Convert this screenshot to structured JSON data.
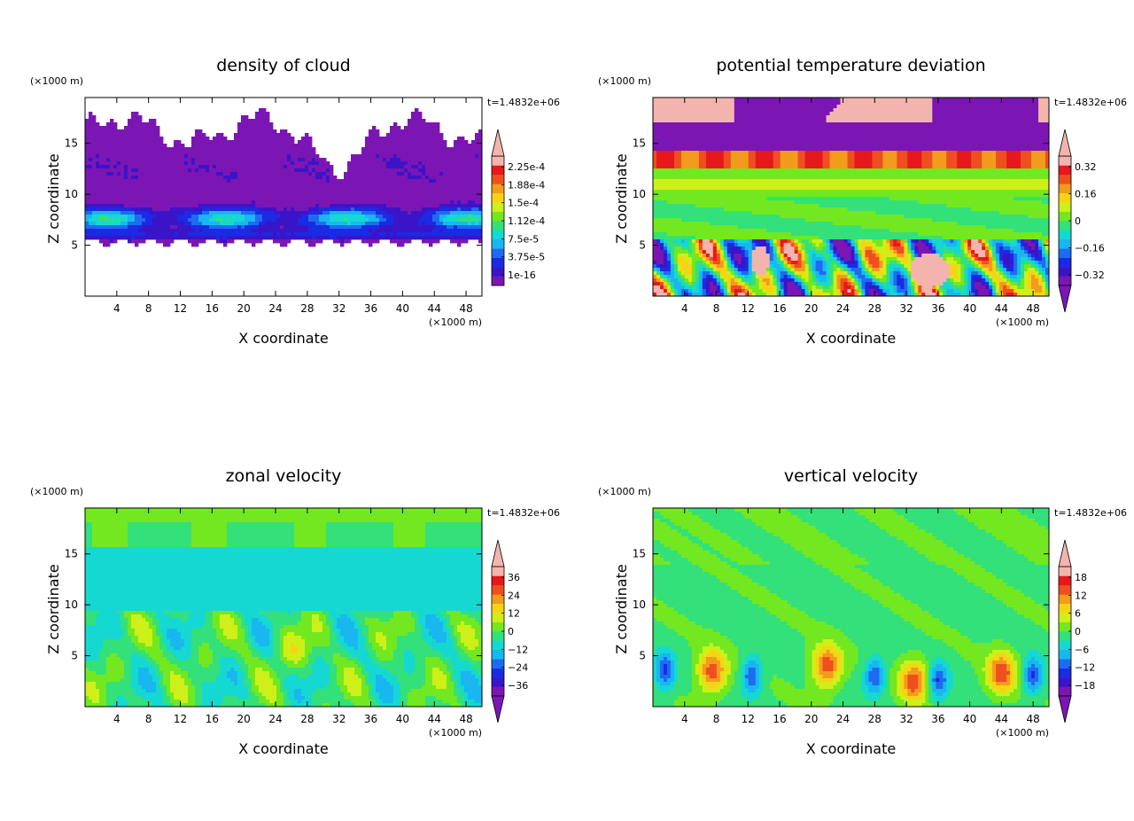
{
  "colors": [
    "#7b16b5",
    "#3b14c8",
    "#1a2be3",
    "#1f6bf0",
    "#19b7f0",
    "#15d8d2",
    "#33e07a",
    "#73e820",
    "#cfef18",
    "#f6d414",
    "#f29b1c",
    "#ef4f1e",
    "#e6181c",
    "#f4b4ae"
  ],
  "chart_data": [
    {
      "type": "heatmap",
      "title": "density of cloud",
      "xlabel": "X coordinate",
      "ylabel": "Z coordinate",
      "x_unit": "(×1000 m)",
      "y_unit": "(×1000 m)",
      "time_label": "t=1.4832e+06",
      "xlim": [
        0,
        50
      ],
      "ylim": [
        0,
        19.5
      ],
      "xticks": [
        "4",
        "8",
        "12",
        "16",
        "20",
        "24",
        "28",
        "32",
        "36",
        "40",
        "44",
        "48"
      ],
      "yticks": [
        "5",
        "10",
        "15"
      ],
      "xtick_values": [
        4,
        8,
        12,
        16,
        20,
        24,
        28,
        32,
        36,
        40,
        44,
        48
      ],
      "ytick_values": [
        5,
        10,
        15
      ],
      "colorbar_labels": [
        "1e-16",
        "3.75e-5",
        "7.5e-5",
        "1.12e-4",
        "1.5e-4",
        "1.88e-4",
        "2.25e-4"
      ],
      "colorbar_triangle_bottom": false,
      "field": "cloud"
    },
    {
      "type": "heatmap",
      "title": "potential temperature deviation",
      "xlabel": "X coordinate",
      "ylabel": "Z coordinate",
      "x_unit": "(×1000 m)",
      "y_unit": "(×1000 m)",
      "time_label": "t=1.4832e+06",
      "xlim": [
        0,
        50
      ],
      "ylim": [
        0,
        19.5
      ],
      "xticks": [
        "4",
        "8",
        "12",
        "16",
        "20",
        "24",
        "28",
        "32",
        "36",
        "40",
        "44",
        "48"
      ],
      "yticks": [
        "5",
        "10",
        "15"
      ],
      "xtick_values": [
        4,
        8,
        12,
        16,
        20,
        24,
        28,
        32,
        36,
        40,
        44,
        48
      ],
      "ytick_values": [
        5,
        10,
        15
      ],
      "colorbar_labels": [
        "−0.32",
        "−0.16",
        "0",
        "0.16",
        "0.32"
      ],
      "colorbar_triangle_bottom": true,
      "field": "theta"
    },
    {
      "type": "heatmap",
      "title": "zonal velocity",
      "xlabel": "X coordinate",
      "ylabel": "Z coordinate",
      "x_unit": "(×1000 m)",
      "y_unit": "(×1000 m)",
      "time_label": "t=1.4832e+06",
      "xlim": [
        0,
        50
      ],
      "ylim": [
        0,
        19.5
      ],
      "xticks": [
        "4",
        "8",
        "12",
        "16",
        "20",
        "24",
        "28",
        "32",
        "36",
        "40",
        "44",
        "48"
      ],
      "yticks": [
        "5",
        "10",
        "15"
      ],
      "xtick_values": [
        4,
        8,
        12,
        16,
        20,
        24,
        28,
        32,
        36,
        40,
        44,
        48
      ],
      "ytick_values": [
        5,
        10,
        15
      ],
      "colorbar_labels": [
        "−36",
        "−24",
        "−12",
        "0",
        "12",
        "24",
        "36"
      ],
      "colorbar_triangle_bottom": true,
      "field": "u"
    },
    {
      "type": "heatmap",
      "title": "vertical velocity",
      "xlabel": "X coordinate",
      "ylabel": "Z coordinate",
      "x_unit": "(×1000 m)",
      "y_unit": "(×1000 m)",
      "time_label": "t=1.4832e+06",
      "xlim": [
        0,
        50
      ],
      "ylim": [
        0,
        19.5
      ],
      "xticks": [
        "4",
        "8",
        "12",
        "16",
        "20",
        "24",
        "28",
        "32",
        "36",
        "40",
        "44",
        "48"
      ],
      "yticks": [
        "5",
        "10",
        "15"
      ],
      "xtick_values": [
        4,
        8,
        12,
        16,
        20,
        24,
        28,
        32,
        36,
        40,
        44,
        48
      ],
      "ytick_values": [
        5,
        10,
        15
      ],
      "colorbar_labels": [
        "−18",
        "−12",
        "−6",
        "0",
        "6",
        "12",
        "18"
      ],
      "colorbar_triangle_bottom": true,
      "field": "w"
    }
  ]
}
